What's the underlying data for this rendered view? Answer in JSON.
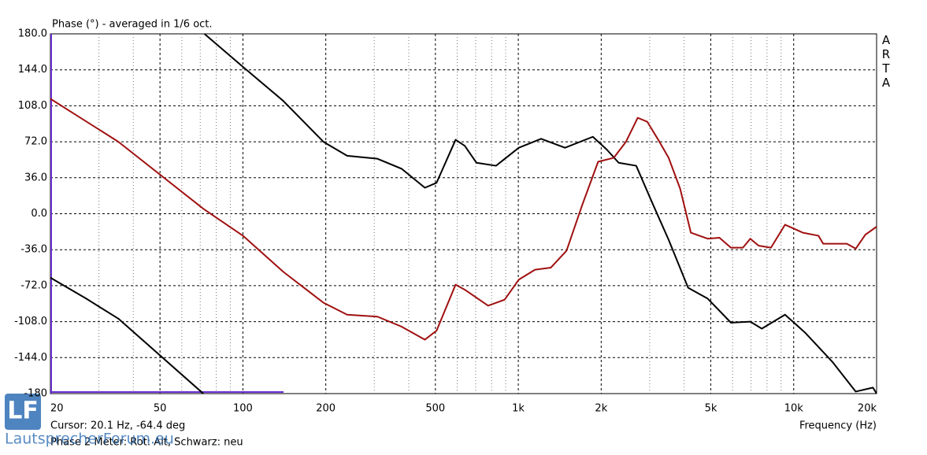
{
  "chart_data": {
    "type": "line",
    "title": "Phase (°) - averaged in 1/6 oct.",
    "brand": "ARTA",
    "cursor_text": "Cursor: 20.1 Hz, -64.4 deg",
    "xlabel": "Frequency (Hz)",
    "note": "Phase 2 Meter: Rot: Alt, Schwarz: neu",
    "logo": "LF",
    "watermark": "LautsprecherForum.eu",
    "xscale": "log",
    "grid": true,
    "xlim": [
      20,
      20000
    ],
    "ylim": [
      -180,
      180
    ],
    "xticks": [
      20,
      50,
      100,
      200,
      500,
      {
        "value": 1000,
        "label": "1k"
      },
      {
        "value": 2000,
        "label": "2k"
      },
      {
        "value": 5000,
        "label": "5k"
      },
      {
        "value": 10000,
        "label": "10k"
      },
      {
        "value": 20000,
        "label": "20k"
      }
    ],
    "minor_xticks": [
      30,
      40,
      60,
      70,
      80,
      90,
      300,
      400,
      600,
      700,
      800,
      900,
      3000,
      4000,
      6000,
      7000,
      8000,
      9000
    ],
    "yticks": [
      {
        "value": 180,
        "label": "180.0"
      },
      {
        "value": 144,
        "label": "144.0"
      },
      {
        "value": 108,
        "label": "108.0"
      },
      {
        "value": 72,
        "label": "72.0"
      },
      {
        "value": 36,
        "label": "36.0"
      },
      {
        "value": 0,
        "label": "0.0"
      },
      {
        "value": -36,
        "label": "-36.0"
      },
      {
        "value": -72,
        "label": "-72.0"
      },
      {
        "value": -108,
        "label": "-108.0"
      },
      {
        "value": -144,
        "label": "-144.0"
      },
      {
        "value": -180,
        "label": "-180"
      }
    ],
    "series": [
      {
        "color": "#000000",
        "x": [
          20,
          27,
          35.3,
          71.8,
          72,
          72.5,
          100,
          140,
          196,
          239,
          308,
          377,
          458,
          505,
          592,
          639,
          705,
          830,
          1004,
          1210,
          1478,
          1865,
          2099,
          2314,
          2680,
          3086,
          3514,
          4136,
          4874,
          5917,
          6958,
          7660,
          9300,
          11000,
          13800,
          16800,
          19400,
          20000
        ],
        "values": [
          -64,
          -85,
          -105,
          -180,
          null,
          180,
          147,
          113,
          72,
          58,
          55,
          45,
          26,
          31,
          74,
          68,
          51,
          48,
          66,
          75,
          66,
          77,
          64,
          51,
          48,
          9,
          -26,
          -74,
          -85,
          -109,
          -108,
          -115,
          -101,
          -119,
          -148,
          -178,
          -174,
          -180
        ]
      },
      {
        "color": "#a01010",
        "x": [
          20,
          35.3,
          71.8,
          100,
          140,
          196,
          239,
          308,
          377,
          458,
          505,
          592,
          639,
          777,
          892,
          1004,
          1150,
          1312,
          1497,
          1708,
          1949,
          2223,
          2460,
          2714,
          2941,
          3222,
          3514,
          3870,
          4233,
          4874,
          5374,
          5917,
          6540,
          6958,
          7460,
          8270,
          9300,
          10800,
          12300,
          12800,
          15600,
          16800,
          18200,
          20000
        ],
        "values": [
          115,
          72,
          5,
          -22,
          -58,
          -89,
          -101,
          -103,
          -113,
          -126,
          -117,
          -71,
          -76,
          -92,
          -86,
          -66,
          -56,
          -54,
          -37,
          9,
          52,
          56,
          72,
          96,
          92,
          74,
          56,
          25,
          -19,
          -25,
          -24,
          -34,
          -34,
          -25,
          -32,
          -34,
          -11,
          -19,
          -22,
          -30,
          -30,
          -35,
          -21,
          -13
        ]
      }
    ]
  }
}
